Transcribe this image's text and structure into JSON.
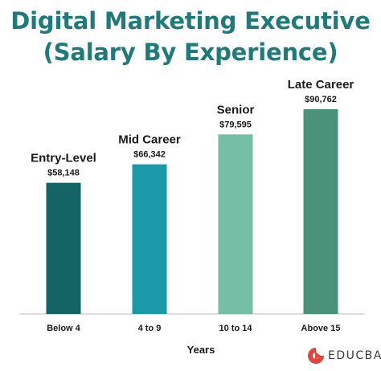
{
  "title_line1": "Digital Marketing Executive",
  "title_line2": "(Salary By Experience)",
  "brand": "EDUCBA",
  "colors": {
    "title": "#1f7a7a",
    "bars": [
      "#146466",
      "#1a9aa8",
      "#74bfa6",
      "#4a927a"
    ],
    "text": "#1a1a1a",
    "axis": "#bfbfbf",
    "logo_red": "#e0453a"
  },
  "chart_data": {
    "type": "bar",
    "title": "Digital Marketing Executive (Salary By Experience)",
    "xlabel": "Years",
    "ylabel": "",
    "categories": [
      "Below 4",
      "4 to 9",
      "10 to 14",
      "Above 15"
    ],
    "stages": [
      "Entry-Level",
      "Mid Career",
      "Senior",
      "Late Career"
    ],
    "values": [
      58148,
      66342,
      79595,
      90762
    ],
    "value_labels": [
      "$58,148",
      "$66,342",
      "$79,595",
      "$90,762"
    ],
    "ylim": [
      0,
      90762
    ],
    "grid": false,
    "legend": "none"
  }
}
